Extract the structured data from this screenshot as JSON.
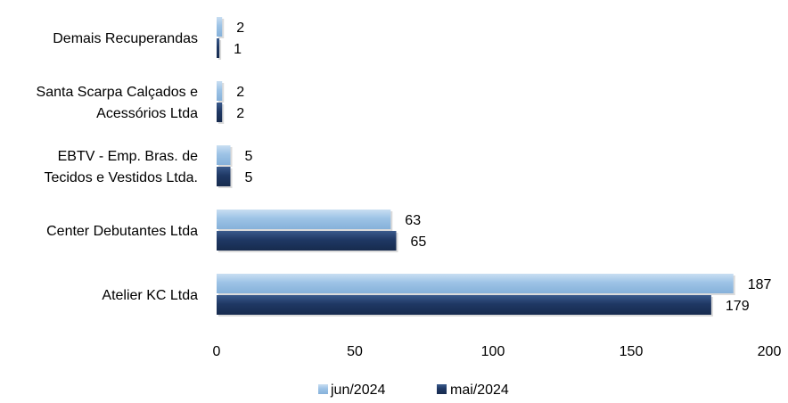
{
  "chart_data": {
    "type": "bar",
    "orientation": "horizontal",
    "categories": [
      [
        "Atelier KC Ltda"
      ],
      [
        "Center Debutantes Ltda"
      ],
      [
        "EBTV - Emp. Bras. de",
        "Tecidos  e Vestidos Ltda."
      ],
      [
        "Santa Scarpa Calçados e",
        "Acessórios Ltda"
      ],
      [
        "Demais Recuperandas"
      ]
    ],
    "series": [
      {
        "name": "jun/2024",
        "color": "#9DC3E6",
        "values": [
          187,
          63,
          5,
          2,
          2
        ]
      },
      {
        "name": "mai/2024",
        "color": "#1F3864",
        "values": [
          179,
          65,
          5,
          2,
          1
        ]
      }
    ],
    "xlim": [
      0,
      200
    ],
    "xticks": [
      0,
      50,
      100,
      150,
      200
    ],
    "title": "",
    "xlabel": "",
    "ylabel": "",
    "grid": false,
    "legend_position": "bottom"
  }
}
